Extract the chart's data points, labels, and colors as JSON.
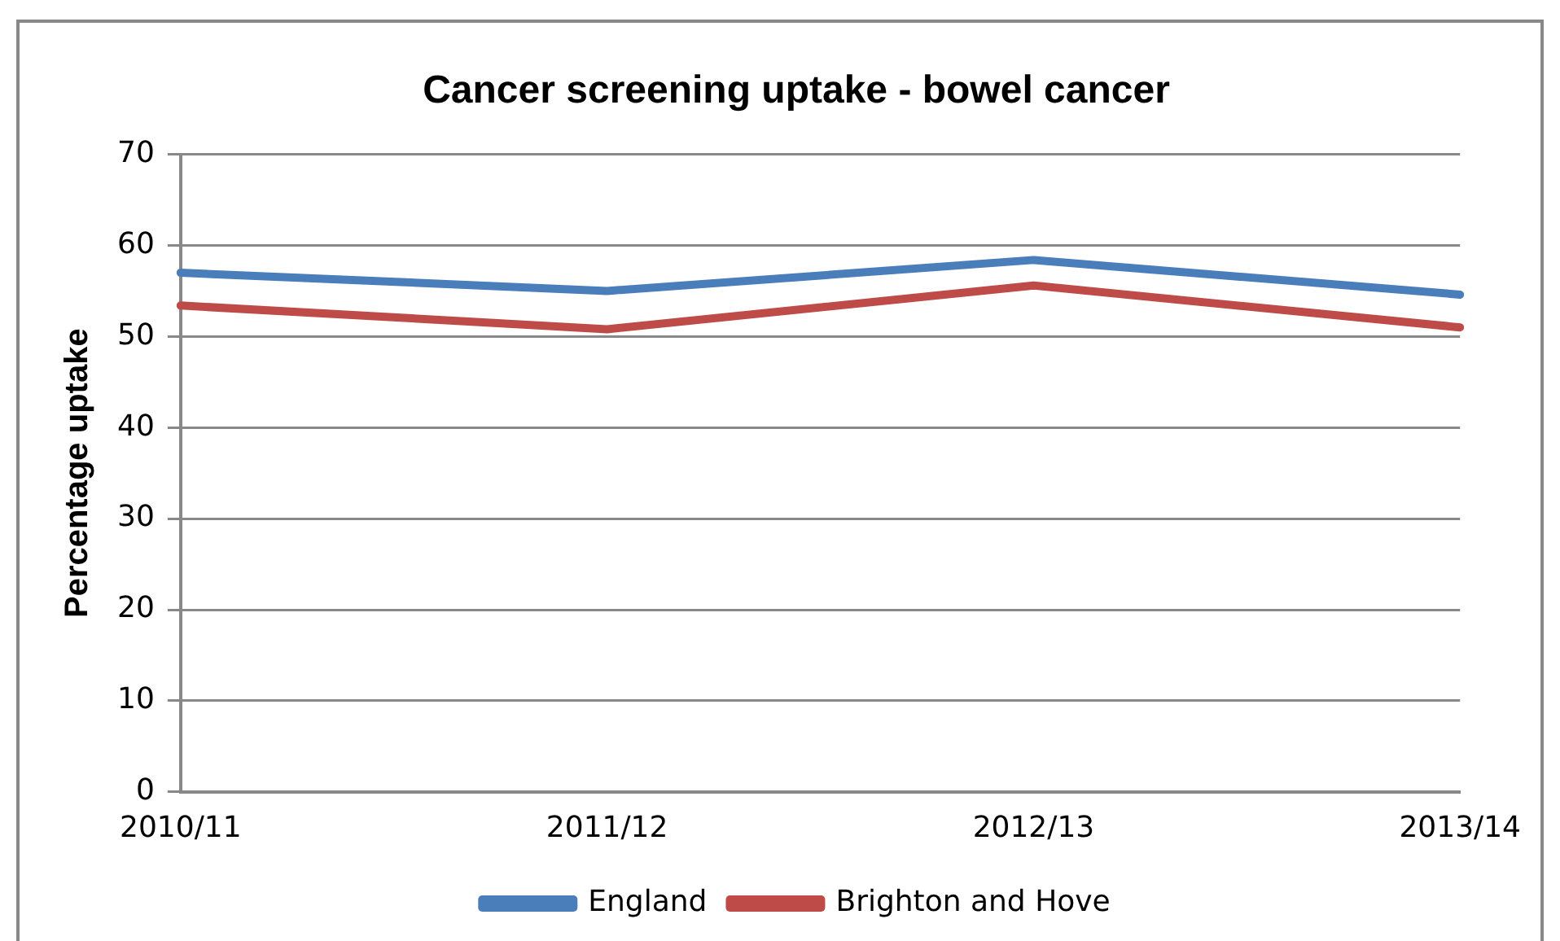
{
  "chart_data": {
    "type": "line",
    "title": "Cancer screening uptake - bowel cancer",
    "ylabel": "Percentage uptake",
    "categories": [
      "2010/11",
      "2011/12",
      "2012/13",
      "2013/14"
    ],
    "series": [
      {
        "name": "England",
        "color": "#4a7ebb",
        "values": [
          57,
          55,
          58.4,
          54.6
        ]
      },
      {
        "name": "Brighton and Hove",
        "color": "#be4b48",
        "values": [
          53.4,
          50.8,
          55.6,
          51
        ]
      }
    ],
    "ylim": [
      0,
      70
    ],
    "yticks": [
      0,
      10,
      20,
      30,
      40,
      50,
      60,
      70
    ],
    "grid": "y",
    "legend": "bottom",
    "marker": "none",
    "line_style": "solid"
  }
}
